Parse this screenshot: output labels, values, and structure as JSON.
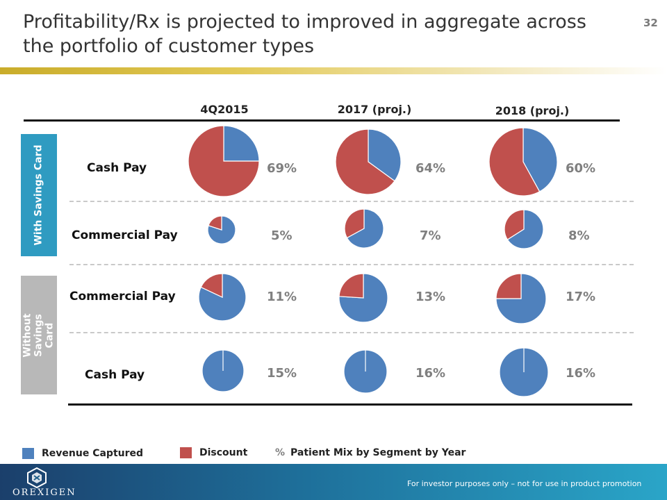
{
  "page": {
    "title": "Profitability/Rx is projected to improved in aggregate across the portfolio of customer types",
    "page_number": "32",
    "footer_note": "For investor purposes only – not for use in product promotion",
    "logo_text": "OREXIGEN",
    "colors": {
      "revenue": "#4f81bd",
      "discount": "#c0504d",
      "band_with": "#2f9bc1",
      "band_without": "#b8b8b8"
    }
  },
  "groups": {
    "with_card": "With Savings Card",
    "without_card": "Without Savings Card"
  },
  "legend": {
    "revenue": "Revenue Captured",
    "discount": "Discount",
    "mix_pct": "%",
    "mix_text": "Patient Mix by Segment by Year"
  },
  "chart_data": {
    "type": "pie",
    "columns": [
      "4Q2015",
      "2017 (proj.)",
      "2018 (proj.)"
    ],
    "series": [
      "Revenue Captured",
      "Discount"
    ],
    "rows": [
      {
        "label": "Cash Pay",
        "group": "With Savings Card",
        "patient_mix": [
          "69%",
          "64%",
          "60%"
        ],
        "revenue_share": [
          0.25,
          0.35,
          0.42
        ]
      },
      {
        "label": "Commercial Pay",
        "group": "With Savings Card",
        "patient_mix": [
          "5%",
          "7%",
          "8%"
        ],
        "revenue_share": [
          0.8,
          0.67,
          0.66
        ]
      },
      {
        "label": "Commercial Pay",
        "group": "Without Savings Card",
        "patient_mix": [
          "11%",
          "13%",
          "17%"
        ],
        "revenue_share": [
          0.82,
          0.76,
          0.75
        ]
      },
      {
        "label": "Cash Pay",
        "group": "Without Savings Card",
        "patient_mix": [
          "15%",
          "16%",
          "16%"
        ],
        "revenue_share": [
          1.0,
          1.0,
          1.0
        ]
      }
    ]
  }
}
